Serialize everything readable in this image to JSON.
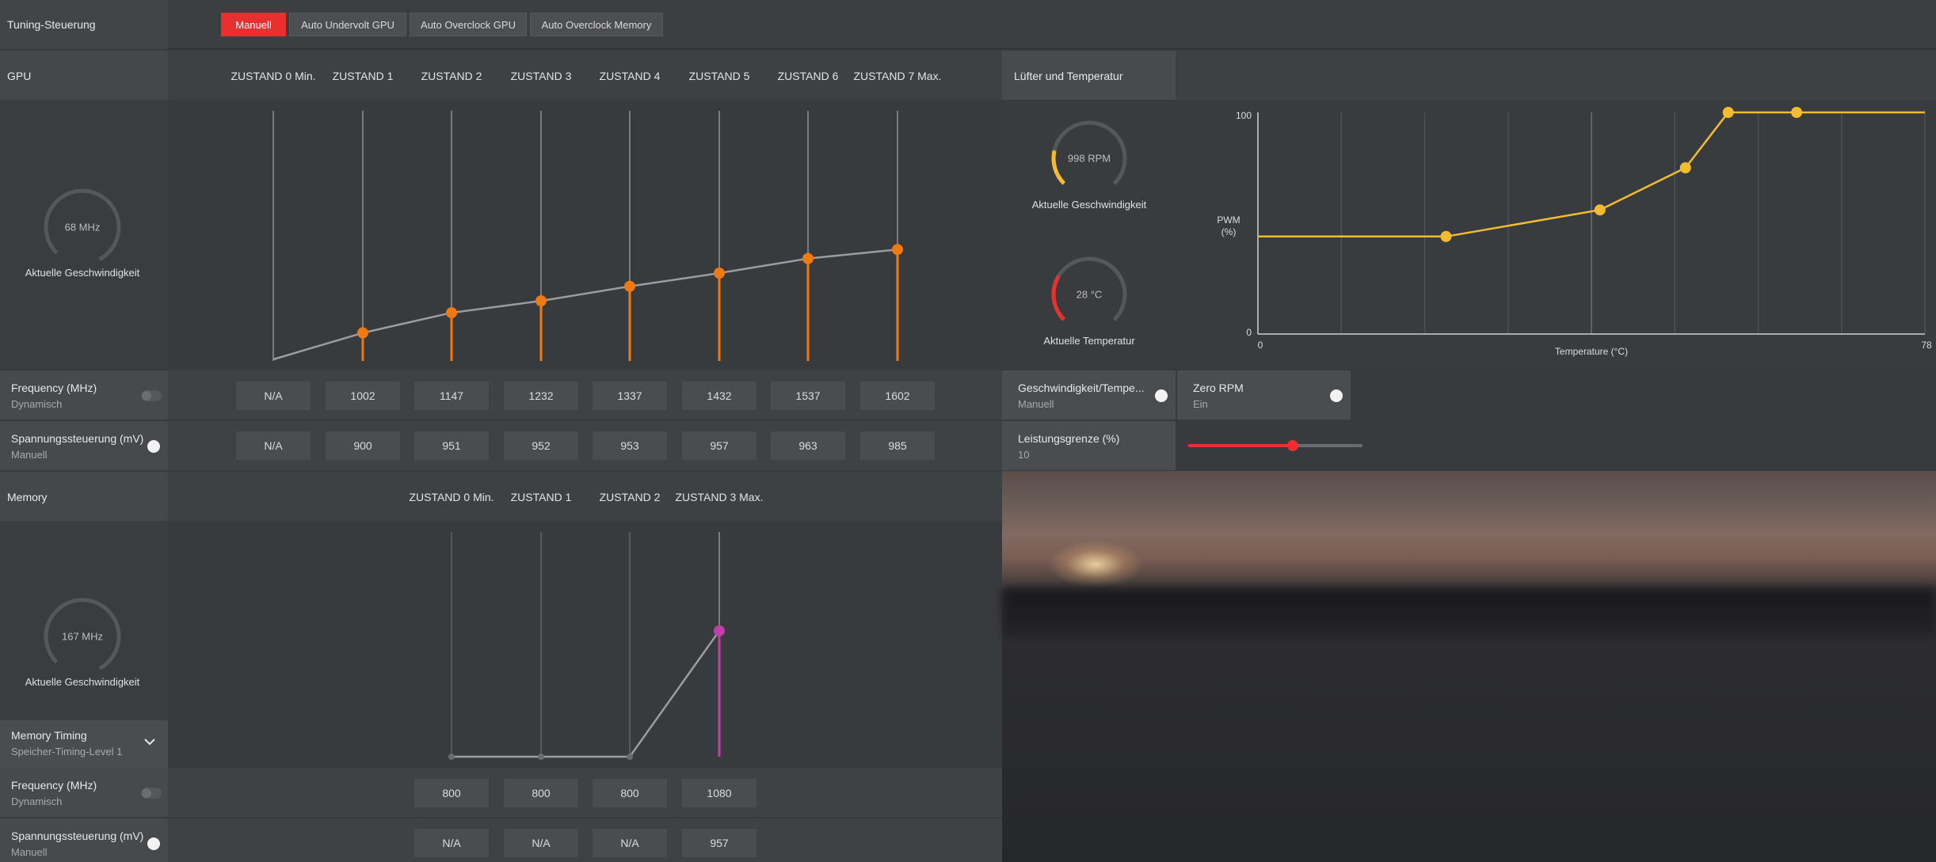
{
  "tuning": {
    "title": "Tuning-Steuerung",
    "buttons": [
      "Manuell",
      "Auto Undervolt GPU",
      "Auto Overclock GPU",
      "Auto Overclock Memory"
    ]
  },
  "gpu": {
    "title": "GPU",
    "states": [
      "ZUSTAND 0 Min.",
      "ZUSTAND 1",
      "ZUSTAND 2",
      "ZUSTAND 3",
      "ZUSTAND 4",
      "ZUSTAND 5",
      "ZUSTAND 6",
      "ZUSTAND 7 Max."
    ],
    "gauge_value": "68 MHz",
    "gauge_caption": "Aktuelle Geschwindigkeit",
    "frequency": {
      "title": "Frequency (MHz)",
      "sub": "Dynamisch",
      "values": [
        "N/A",
        "1002",
        "1147",
        "1232",
        "1337",
        "1432",
        "1537",
        "1602"
      ]
    },
    "voltage": {
      "title": "Spannungssteuerung (mV)",
      "sub": "Manuell",
      "values": [
        "N/A",
        "900",
        "951",
        "952",
        "953",
        "957",
        "963",
        "985"
      ]
    }
  },
  "fan": {
    "title": "Lüfter und Temperatur",
    "speed_gauge": "998 RPM",
    "speed_caption": "Aktuelle Geschwindigkeit",
    "temp_gauge": "28 °C",
    "temp_caption": "Aktuelle Temperatur",
    "chart": {
      "ylabel_line1": "PWM",
      "ylabel_line2": "(%)",
      "xlabel": "Temperature (°C)",
      "y_max_label": "100",
      "y_min_label": "0",
      "x_min_label": "0",
      "x_max_label": "78"
    },
    "speed_temp": {
      "title": "Geschwindigkeit/Tempe...",
      "sub": "Manuell"
    },
    "zero_rpm": {
      "title": "Zero RPM",
      "sub": "Ein"
    },
    "power_limit": {
      "title": "Leistungsgrenze (%)",
      "sub": "10",
      "value": 10
    }
  },
  "memory": {
    "title": "Memory",
    "states": [
      "ZUSTAND 0 Min.",
      "ZUSTAND 1",
      "ZUSTAND 2",
      "ZUSTAND 3 Max."
    ],
    "gauge_value": "167 MHz",
    "gauge_caption": "Aktuelle Geschwindigkeit",
    "timing": {
      "title": "Memory Timing",
      "sub": "Speicher-Timing-Level 1"
    },
    "frequency": {
      "title": "Frequency (MHz)",
      "sub": "Dynamisch",
      "values": [
        "800",
        "800",
        "800",
        "1080"
      ]
    },
    "voltage": {
      "title": "Spannungssteuerung (mV)",
      "sub": "Manuell",
      "values": [
        "N/A",
        "N/A",
        "N/A",
        "957"
      ]
    }
  },
  "colors": {
    "accent_red": "#e8312e",
    "gpu_orange": "#f07a12",
    "fan_yellow": "#f2bc2e",
    "mem_magenta": "#c23fa8"
  }
}
